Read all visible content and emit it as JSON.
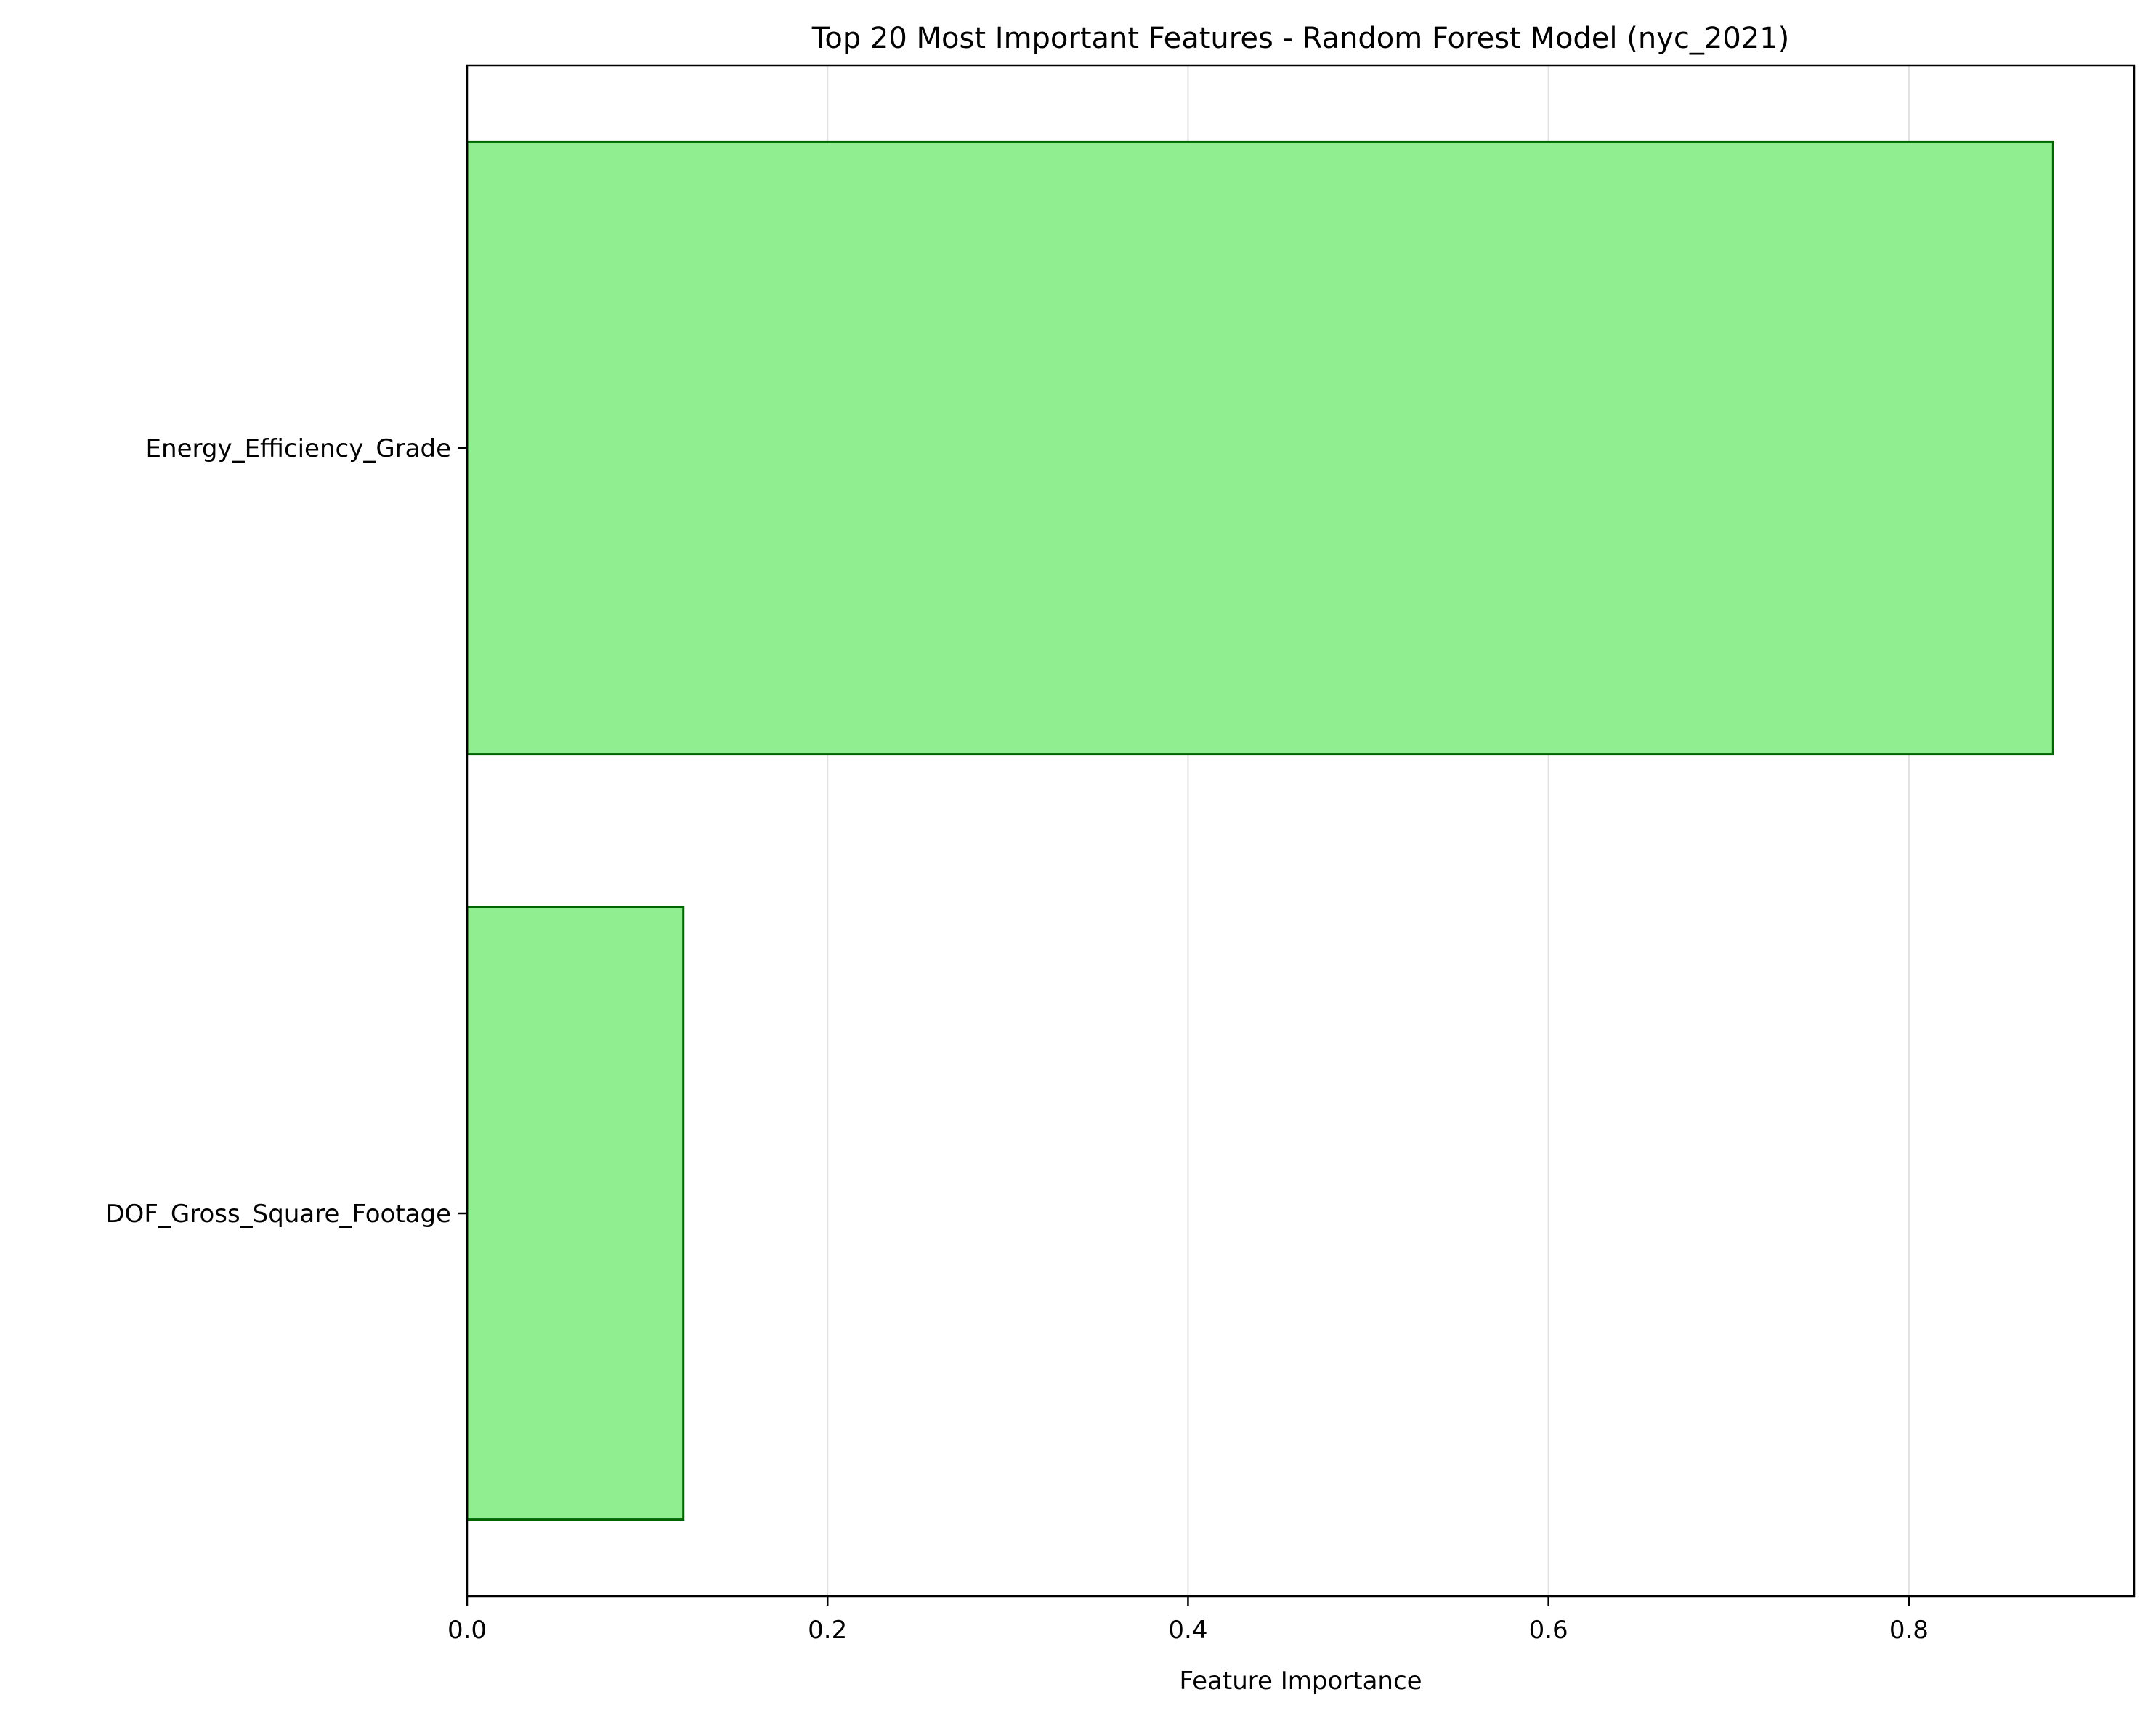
{
  "chart_data": {
    "type": "bar",
    "orientation": "horizontal",
    "title": "Top 20 Most Important Features - Random Forest Model (nyc_2021)",
    "xlabel": "Feature Importance",
    "ylabel": "",
    "categories": [
      "Energy_Efficiency_Grade",
      "DOF_Gross_Square_Footage"
    ],
    "values": [
      0.88,
      0.12
    ],
    "xlim": [
      0.0,
      0.925
    ],
    "xticks": [
      0.0,
      0.2,
      0.4,
      0.6,
      0.8
    ],
    "xtick_labels": [
      "0.0",
      "0.2",
      "0.4",
      "0.6",
      "0.8"
    ],
    "grid": "x-axis vertical lines",
    "colors": {
      "bar_fill": "#90ee90",
      "bar_edge": "#006400",
      "grid": "#e0e0e0",
      "axis": "#000000"
    }
  }
}
